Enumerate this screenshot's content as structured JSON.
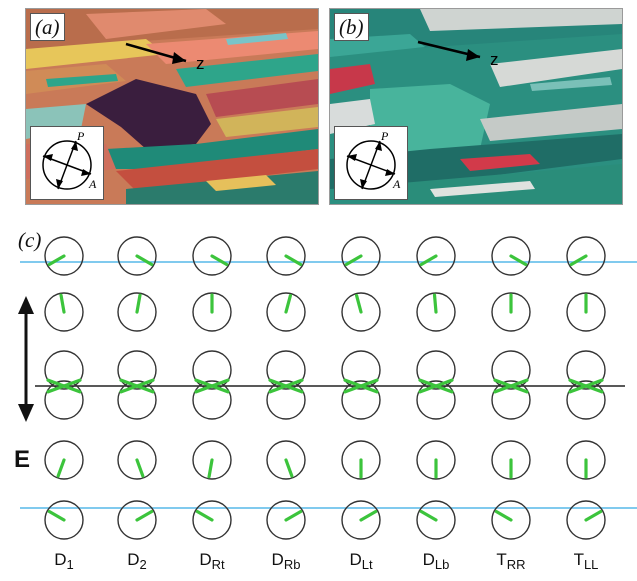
{
  "panels": [
    {
      "label": "(a)",
      "arrow_label": "z",
      "polarizer": {
        "p_label": "P",
        "a_label": "A"
      }
    },
    {
      "label": "(b)",
      "arrow_label": "z",
      "polarizer": {
        "p_label": "P",
        "a_label": "A"
      }
    }
  ],
  "panel_c": {
    "label": "(c)",
    "field_label": "E",
    "columns": [
      {
        "base": "D",
        "sub": "1"
      },
      {
        "base": "D",
        "sub": "2"
      },
      {
        "base": "D",
        "sub": "Rt"
      },
      {
        "base": "D",
        "sub": "Rb"
      },
      {
        "base": "D",
        "sub": "Lt"
      },
      {
        "base": "D",
        "sub": "Lb"
      },
      {
        "base": "T",
        "sub": "RR"
      },
      {
        "base": "T",
        "sub": "LL"
      }
    ],
    "director_angles_deg": [
      [
        210,
        330,
        330,
        330,
        210,
        210,
        330,
        210
      ],
      [
        100,
        80,
        90,
        75,
        105,
        95,
        90,
        90
      ],
      [
        0,
        0,
        0,
        0,
        0,
        0,
        0,
        0
      ],
      [
        250,
        290,
        260,
        290,
        270,
        270,
        270,
        270
      ],
      [
        150,
        30,
        150,
        30,
        30,
        150,
        150,
        30
      ]
    ],
    "colors": {
      "director": "#3cc43c",
      "boundary_line": "#57b9e8",
      "midplane": "#222222",
      "circle": "#333333"
    }
  }
}
